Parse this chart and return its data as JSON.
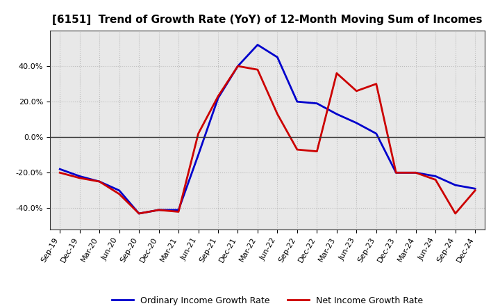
{
  "title": "[6151]  Trend of Growth Rate (YoY) of 12-Month Moving Sum of Incomes",
  "x_labels": [
    "Sep-19",
    "Dec-19",
    "Mar-20",
    "Jun-20",
    "Sep-20",
    "Dec-20",
    "Mar-21",
    "Jun-21",
    "Sep-21",
    "Dec-21",
    "Mar-22",
    "Jun-22",
    "Sep-22",
    "Dec-22",
    "Mar-23",
    "Jun-23",
    "Sep-23",
    "Dec-23",
    "Mar-24",
    "Jun-24",
    "Sep-24",
    "Dec-24"
  ],
  "ordinary_income": [
    -0.18,
    -0.22,
    -0.25,
    -0.3,
    -0.43,
    -0.41,
    -0.41,
    -0.1,
    0.22,
    0.4,
    0.52,
    0.45,
    0.2,
    0.19,
    0.13,
    0.08,
    0.02,
    -0.2,
    -0.2,
    -0.22,
    -0.27,
    -0.29
  ],
  "net_income": [
    -0.2,
    -0.23,
    -0.25,
    -0.32,
    -0.43,
    -0.41,
    -0.42,
    0.02,
    0.23,
    0.4,
    0.38,
    0.13,
    -0.07,
    -0.08,
    0.36,
    0.26,
    0.3,
    -0.2,
    -0.2,
    -0.24,
    -0.43,
    -0.3
  ],
  "ordinary_color": "#0000cc",
  "net_color": "#cc0000",
  "ylim": [
    -0.52,
    0.6
  ],
  "yticks": [
    -0.4,
    -0.2,
    0.0,
    0.2,
    0.4
  ],
  "plot_bg_color": "#e8e8e8",
  "background_color": "#ffffff",
  "grid_color": "#bbbbbb",
  "zero_line_color": "#333333",
  "legend_ordinary": "Ordinary Income Growth Rate",
  "legend_net": "Net Income Growth Rate",
  "title_fontsize": 11,
  "tick_fontsize": 8,
  "legend_fontsize": 9,
  "linewidth": 2.0
}
